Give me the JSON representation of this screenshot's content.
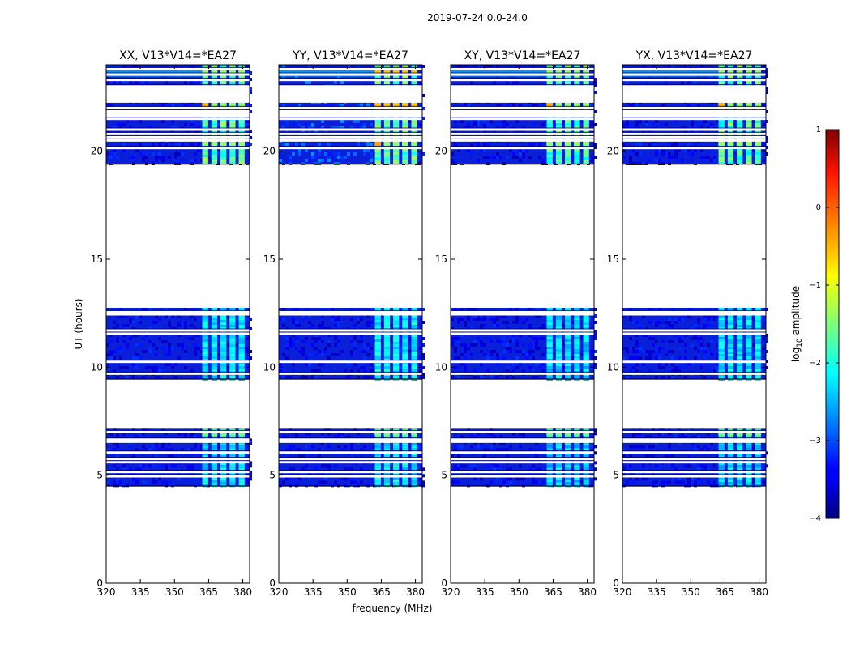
{
  "chart_data": {
    "type": "heatmap",
    "suptitle": "2019-07-24 0.0-24.0",
    "xlabel": "frequency (MHz)",
    "ylabel": "UT (hours)",
    "xlim": [
      320,
      383
    ],
    "ylim": [
      0,
      24
    ],
    "x_ticks": [
      320,
      335,
      350,
      365,
      380
    ],
    "y_ticks": [
      0,
      5,
      10,
      15,
      20
    ],
    "panels": [
      {
        "title": "XX, V13*V14=*EA27",
        "band_strength": 1.0,
        "low_band_bright": false
      },
      {
        "title": "YY, V13*V14=*EA27",
        "band_strength": 1.1,
        "low_band_bright": true
      },
      {
        "title": "XY, V13*V14=*EA27",
        "band_strength": 0.9,
        "low_band_bright": false
      },
      {
        "title": "YX, V13*V14=*EA27",
        "band_strength": 0.95,
        "low_band_bright": false
      }
    ],
    "data_blocks_hours": [
      {
        "start": 4.5,
        "end": 7.15
      },
      {
        "start": 9.45,
        "end": 12.75
      },
      {
        "start": 19.4,
        "end": 24.0
      }
    ],
    "flagged_rows_hours": [
      4.95,
      5.15,
      5.6,
      5.75,
      6.05,
      6.55,
      6.65,
      7.0,
      9.7,
      10.25,
      11.55,
      11.7,
      12.45,
      12.55,
      20.15,
      20.5,
      20.65,
      20.8,
      21.0,
      21.5,
      21.85,
      22.0,
      22.3,
      23.0,
      23.3,
      23.55,
      23.8
    ],
    "rfi_band_centers_mhz": [
      363.5,
      367.5,
      371.5,
      375.5,
      379.5
    ],
    "colorbar": {
      "label_prefix": "log",
      "label_sub": "10",
      "label_suffix": " amplitude",
      "range": [
        -4,
        1
      ],
      "ticks": [
        "1",
        "0",
        "−1",
        "−2",
        "−3",
        "−4"
      ],
      "tick_values": [
        1,
        0,
        -1,
        -2,
        -3,
        -4
      ]
    }
  }
}
